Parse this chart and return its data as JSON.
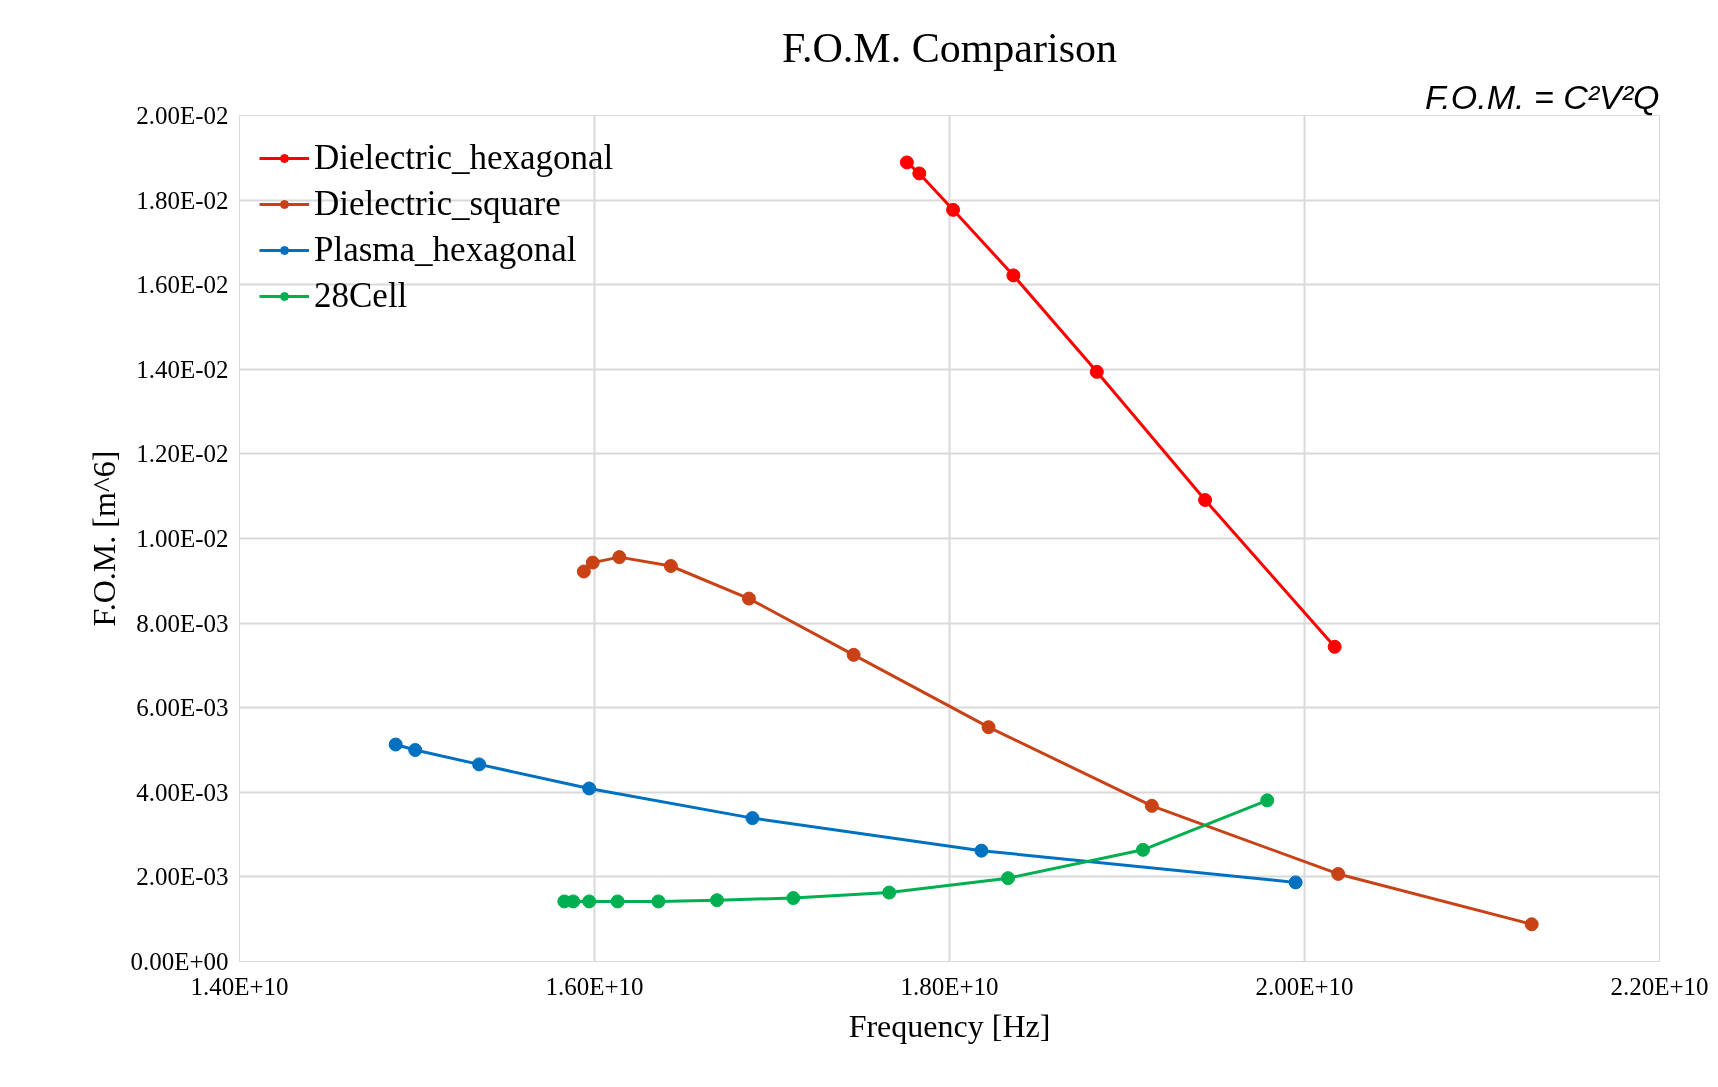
{
  "chart_data": {
    "type": "line",
    "title": "F.O.M. Comparison",
    "xlabel": "Frequency [Hz]",
    "ylabel": "F.O.M. [m^6]",
    "annotations": [
      "F.O.M. = C²V²Q"
    ],
    "xlim": [
      14000000000.0,
      22000000000.0
    ],
    "xticks": [
      {
        "value": 14000000000.0,
        "label": "1.40E+10"
      },
      {
        "value": 16000000000.0,
        "label": "1.60E+10"
      },
      {
        "value": 18000000000.0,
        "label": "1.80E+10"
      },
      {
        "value": 20000000000.0,
        "label": "2.00E+10"
      },
      {
        "value": 22000000000.0,
        "label": "2.20E+10"
      }
    ],
    "ylim": [
      0,
      0.02
    ],
    "yticks": [
      {
        "value": 0,
        "label": "0.00E+00"
      },
      {
        "value": 0.002,
        "label": "2.00E-03"
      },
      {
        "value": 0.004,
        "label": "4.00E-03"
      },
      {
        "value": 0.006,
        "label": "6.00E-03"
      },
      {
        "value": 0.008,
        "label": "8.00E-03"
      },
      {
        "value": 0.01,
        "label": "1.00E-02"
      },
      {
        "value": 0.012,
        "label": "1.20E-02"
      },
      {
        "value": 0.014,
        "label": "1.40E-02"
      },
      {
        "value": 0.016,
        "label": "1.60E-02"
      },
      {
        "value": 0.018,
        "label": "1.80E-02"
      },
      {
        "value": 0.02,
        "label": "2.00E-02"
      }
    ],
    "grid": true,
    "legend": "top left",
    "marker": "circle",
    "line_style": "solid",
    "series": [
      {
        "name": "Dielectric_hexagonal",
        "color": "#ff0000",
        "x": [
          17760000000.0,
          17830000000.0,
          18020000000.0,
          18360000000.0,
          18830000000.0,
          19440000000.0,
          20170000000.0
        ],
        "values": [
          0.01889,
          0.01863,
          0.01777,
          0.01622,
          0.01394,
          0.01091,
          0.00744
        ]
      },
      {
        "name": "Dielectric_square",
        "color": "#c84216",
        "x": [
          15940000000.0,
          15990000000.0,
          16140000000.0,
          16430000000.0,
          16870000000.0,
          17460000000.0,
          18220000000.0,
          19140000000.0,
          20190000000.0,
          21280000000.0
        ],
        "values": [
          0.00922,
          0.00943,
          0.00956,
          0.00935,
          0.00858,
          0.00725,
          0.00554,
          0.00368,
          0.00207,
          0.00088
        ]
      },
      {
        "name": "Plasma_hexagonal",
        "color": "#0070c0",
        "x": [
          14880000000.0,
          14990000000.0,
          15350000000.0,
          15970000000.0,
          16890000000.0,
          18180000000.0,
          19950000000.0
        ],
        "values": [
          0.00513,
          0.005,
          0.00466,
          0.00409,
          0.00339,
          0.00262,
          0.00187
        ]
      },
      {
        "name": "28Cell",
        "color": "#00b050",
        "x": [
          15830000000.0,
          15880000000.0,
          15970000000.0,
          16130000000.0,
          16360000000.0,
          16690000000.0,
          17120000000.0,
          17660000000.0,
          18330000000.0,
          19090000000.0,
          19790000000.0
        ],
        "values": [
          0.00142,
          0.00142,
          0.00142,
          0.00142,
          0.00142,
          0.00145,
          0.0015,
          0.00163,
          0.00197,
          0.00264,
          0.00381
        ]
      }
    ]
  }
}
